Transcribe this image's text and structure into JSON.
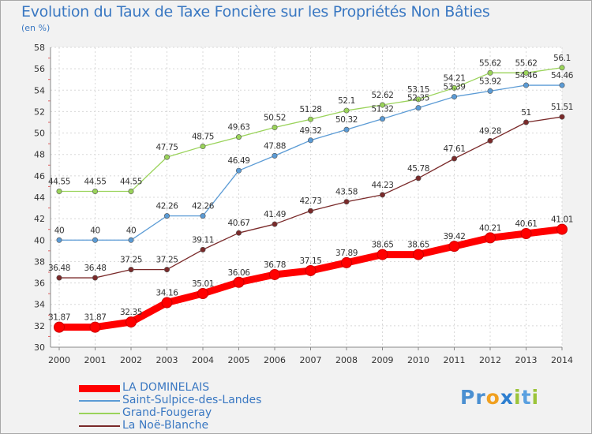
{
  "title": "Evolution du Taux de Taxe Foncière sur les Propriétés Non Bâties",
  "unit_note": "(en %)",
  "brand": {
    "text": "Proxiti",
    "letters": [
      {
        "ch": "P",
        "color": "#4a8fd1"
      },
      {
        "ch": "r",
        "color": "#4a8fd1"
      },
      {
        "ch": "o",
        "color": "#f0a020"
      },
      {
        "ch": "x",
        "color": "#2e7fd0"
      },
      {
        "ch": "i",
        "color": "#9cc43a"
      },
      {
        "ch": "t",
        "color": "#5aa0e0"
      },
      {
        "ch": "i",
        "color": "#9cc43a"
      }
    ]
  },
  "chart_data": {
    "type": "line",
    "categories": [
      "2000",
      "2001",
      "2002",
      "2003",
      "2004",
      "2005",
      "2006",
      "2007",
      "2008",
      "2009",
      "2010",
      "2011",
      "2012",
      "2013",
      "2014"
    ],
    "ylim": [
      30,
      58
    ],
    "yticks": [
      30,
      32,
      34,
      36,
      38,
      40,
      42,
      44,
      46,
      48,
      50,
      52,
      54,
      56,
      58
    ],
    "grid": true,
    "legend_position": "bottom-left",
    "series": [
      {
        "name": "LA DOMINELAIS",
        "color": "#ff0000",
        "values": [
          31.87,
          31.87,
          32.35,
          34.16,
          35.01,
          36.06,
          36.78,
          37.15,
          37.89,
          38.65,
          38.65,
          39.42,
          40.21,
          40.61,
          41.01
        ],
        "labels": [
          "31.87",
          "31.87",
          "32.35",
          "34.16",
          "35.01",
          "36.06",
          "36.78",
          "37.15",
          "37.89",
          "38.65",
          "38.65",
          "39.42",
          "40.21",
          "40.61",
          "41.01"
        ]
      },
      {
        "name": "Saint-Sulpice-des-Landes",
        "color": "#5b9bd5",
        "values": [
          40,
          40,
          40,
          42.26,
          42.26,
          46.49,
          47.88,
          49.32,
          50.32,
          51.32,
          52.35,
          53.39,
          53.92,
          54.46,
          54.46
        ],
        "labels": [
          "40",
          "40",
          "40",
          "42.26",
          "42.26",
          "46.49",
          "47.88",
          "49.32",
          "50.32",
          "51.32",
          "52.35",
          "53.39",
          "53.92",
          "54.46",
          "54.46"
        ]
      },
      {
        "name": "Grand-Fougeray",
        "color": "#9ad35a",
        "values": [
          44.55,
          44.55,
          44.55,
          47.75,
          48.75,
          49.63,
          50.52,
          51.28,
          52.1,
          52.62,
          53.15,
          54.21,
          55.62,
          55.62,
          56.1
        ],
        "labels": [
          "44.55",
          "44.55",
          "44.55",
          "47.75",
          "48.75",
          "49.63",
          "50.52",
          "51.28",
          "52.1",
          "52.62",
          "53.15",
          "54.21",
          "55.62",
          "55.62",
          "56.1"
        ]
      },
      {
        "name": "La Noë-Blanche",
        "color": "#7a2a2a",
        "values": [
          36.48,
          36.48,
          37.25,
          37.25,
          39.11,
          40.67,
          41.49,
          42.73,
          43.58,
          44.23,
          45.78,
          47.61,
          49.28,
          51,
          51.51
        ],
        "labels": [
          "36.48",
          "36.48",
          "37.25",
          "37.25",
          "39.11",
          "40.67",
          "41.49",
          "42.73",
          "43.58",
          "44.23",
          "45.78",
          "47.61",
          "49.28",
          "51",
          "51.51"
        ]
      }
    ]
  }
}
